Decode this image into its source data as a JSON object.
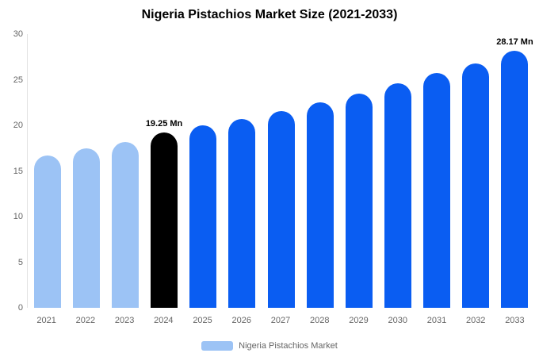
{
  "title": "Nigeria Pistachios Market Size (2021-2033)",
  "legend": {
    "label": "Nigeria Pistachios Market",
    "swatch_color": "#9CC3F5"
  },
  "colors": {
    "light_blue": "#9CC3F5",
    "blue": "#0A5DF2",
    "black": "#000000",
    "axis_text": "#666666"
  },
  "chart_data": {
    "type": "bar",
    "title": "Nigeria Pistachios Market Size (2021-2033)",
    "categories": [
      "2021",
      "2022",
      "2023",
      "2024",
      "2025",
      "2026",
      "2027",
      "2028",
      "2029",
      "2030",
      "2031",
      "2032",
      "2033"
    ],
    "values": [
      16.7,
      17.5,
      18.2,
      19.25,
      20.0,
      20.7,
      21.6,
      22.5,
      23.5,
      24.6,
      25.7,
      26.8,
      28.17
    ],
    "bar_colors": [
      "#9CC3F5",
      "#9CC3F5",
      "#9CC3F5",
      "#000000",
      "#0A5DF2",
      "#0A5DF2",
      "#0A5DF2",
      "#0A5DF2",
      "#0A5DF2",
      "#0A5DF2",
      "#0A5DF2",
      "#0A5DF2",
      "#0A5DF2"
    ],
    "annotations": [
      {
        "category": "2024",
        "text": "19.25 Mn"
      },
      {
        "category": "2033",
        "text": "28.17 Mn"
      }
    ],
    "xlabel": "",
    "ylabel": "",
    "ylim": [
      0,
      30
    ],
    "yticks": [
      0,
      5,
      10,
      15,
      20,
      25,
      30
    ],
    "grid": false,
    "legend": "Nigeria Pistachios Market",
    "legend_position": "bottom"
  }
}
